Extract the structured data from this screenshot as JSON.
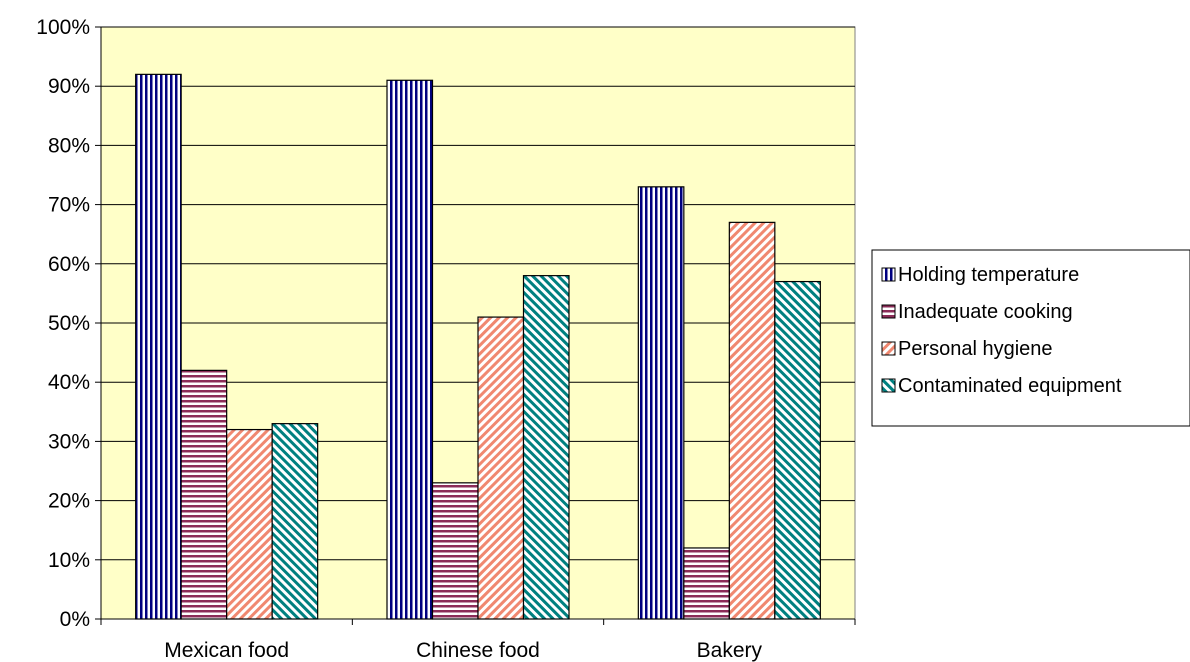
{
  "chart_data": {
    "type": "bar",
    "title": "",
    "xlabel": "",
    "ylabel": "",
    "categories": [
      "Mexican food",
      "Chinese food",
      "Bakery"
    ],
    "ylim": [
      0,
      100
    ],
    "y_ticks": [
      "0%",
      "10%",
      "20%",
      "30%",
      "40%",
      "50%",
      "60%",
      "70%",
      "80%",
      "90%",
      "100%"
    ],
    "grid": true,
    "legend_position": "right",
    "plot_background": "#ffffc8",
    "series": [
      {
        "name": "Holding temperature",
        "values": [
          92,
          91,
          73
        ],
        "pattern": "vertical-stripes",
        "color": "#000080"
      },
      {
        "name": "Inadequate cooking",
        "values": [
          42,
          23,
          12
        ],
        "pattern": "horizontal-stripes",
        "color": "#8b2c58"
      },
      {
        "name": "Personal hygiene",
        "values": [
          32,
          51,
          67
        ],
        "pattern": "diagonal-stripes",
        "color": "#f08870"
      },
      {
        "name": "Contaminated equipment",
        "values": [
          33,
          58,
          57
        ],
        "pattern": "dense-diagonal-stripes",
        "color": "#008080"
      }
    ]
  }
}
